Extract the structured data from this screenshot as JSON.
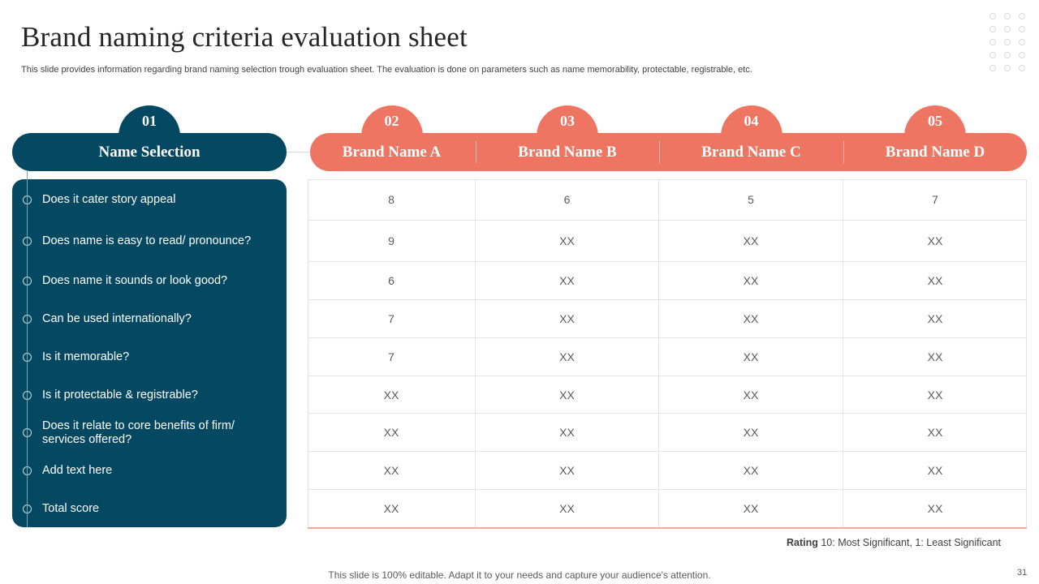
{
  "title": "Brand naming criteria evaluation sheet",
  "subtitle": "This slide provides information regarding brand naming selection trough evaluation sheet. The evaluation is done on parameters such as name memorability, protectable, registrable, etc.",
  "left": {
    "number": "01",
    "header": "Name Selection",
    "criteria": [
      "Does it cater story appeal",
      "Does name is easy to read/ pronounce?",
      "Does name it sounds or look good?",
      "Can be used internationally?",
      "Is it memorable?",
      "Is it protectable & registrable?",
      "Does it relate to core benefits of firm/ services offered?",
      "Add text here",
      "Total score"
    ]
  },
  "columns": [
    {
      "number": "02",
      "name": "Brand Name A"
    },
    {
      "number": "03",
      "name": "Brand Name B"
    },
    {
      "number": "04",
      "name": "Brand Name C"
    },
    {
      "number": "05",
      "name": "Brand Name D"
    }
  ],
  "rows": [
    [
      "8",
      "6",
      "5",
      "7"
    ],
    [
      "9",
      "XX",
      "XX",
      "XX"
    ],
    [
      "6",
      "XX",
      "XX",
      "XX"
    ],
    [
      "7",
      "XX",
      "XX",
      "XX"
    ],
    [
      "7",
      "XX",
      "XX",
      "XX"
    ],
    [
      "XX",
      "XX",
      "XX",
      "XX"
    ],
    [
      "XX",
      "XX",
      "XX",
      "XX"
    ],
    [
      "XX",
      "XX",
      "XX",
      "XX"
    ],
    [
      "XX",
      "XX",
      "XX",
      "XX"
    ]
  ],
  "rating": {
    "label": "Rating",
    "text": "10: Most Significant, 1: Least Significant"
  },
  "footer": "This slide is 100% editable. Adapt it to your needs and capture your audience's attention.",
  "page_number": "31",
  "colors": {
    "teal": "#044961",
    "coral": "#ef7563"
  }
}
